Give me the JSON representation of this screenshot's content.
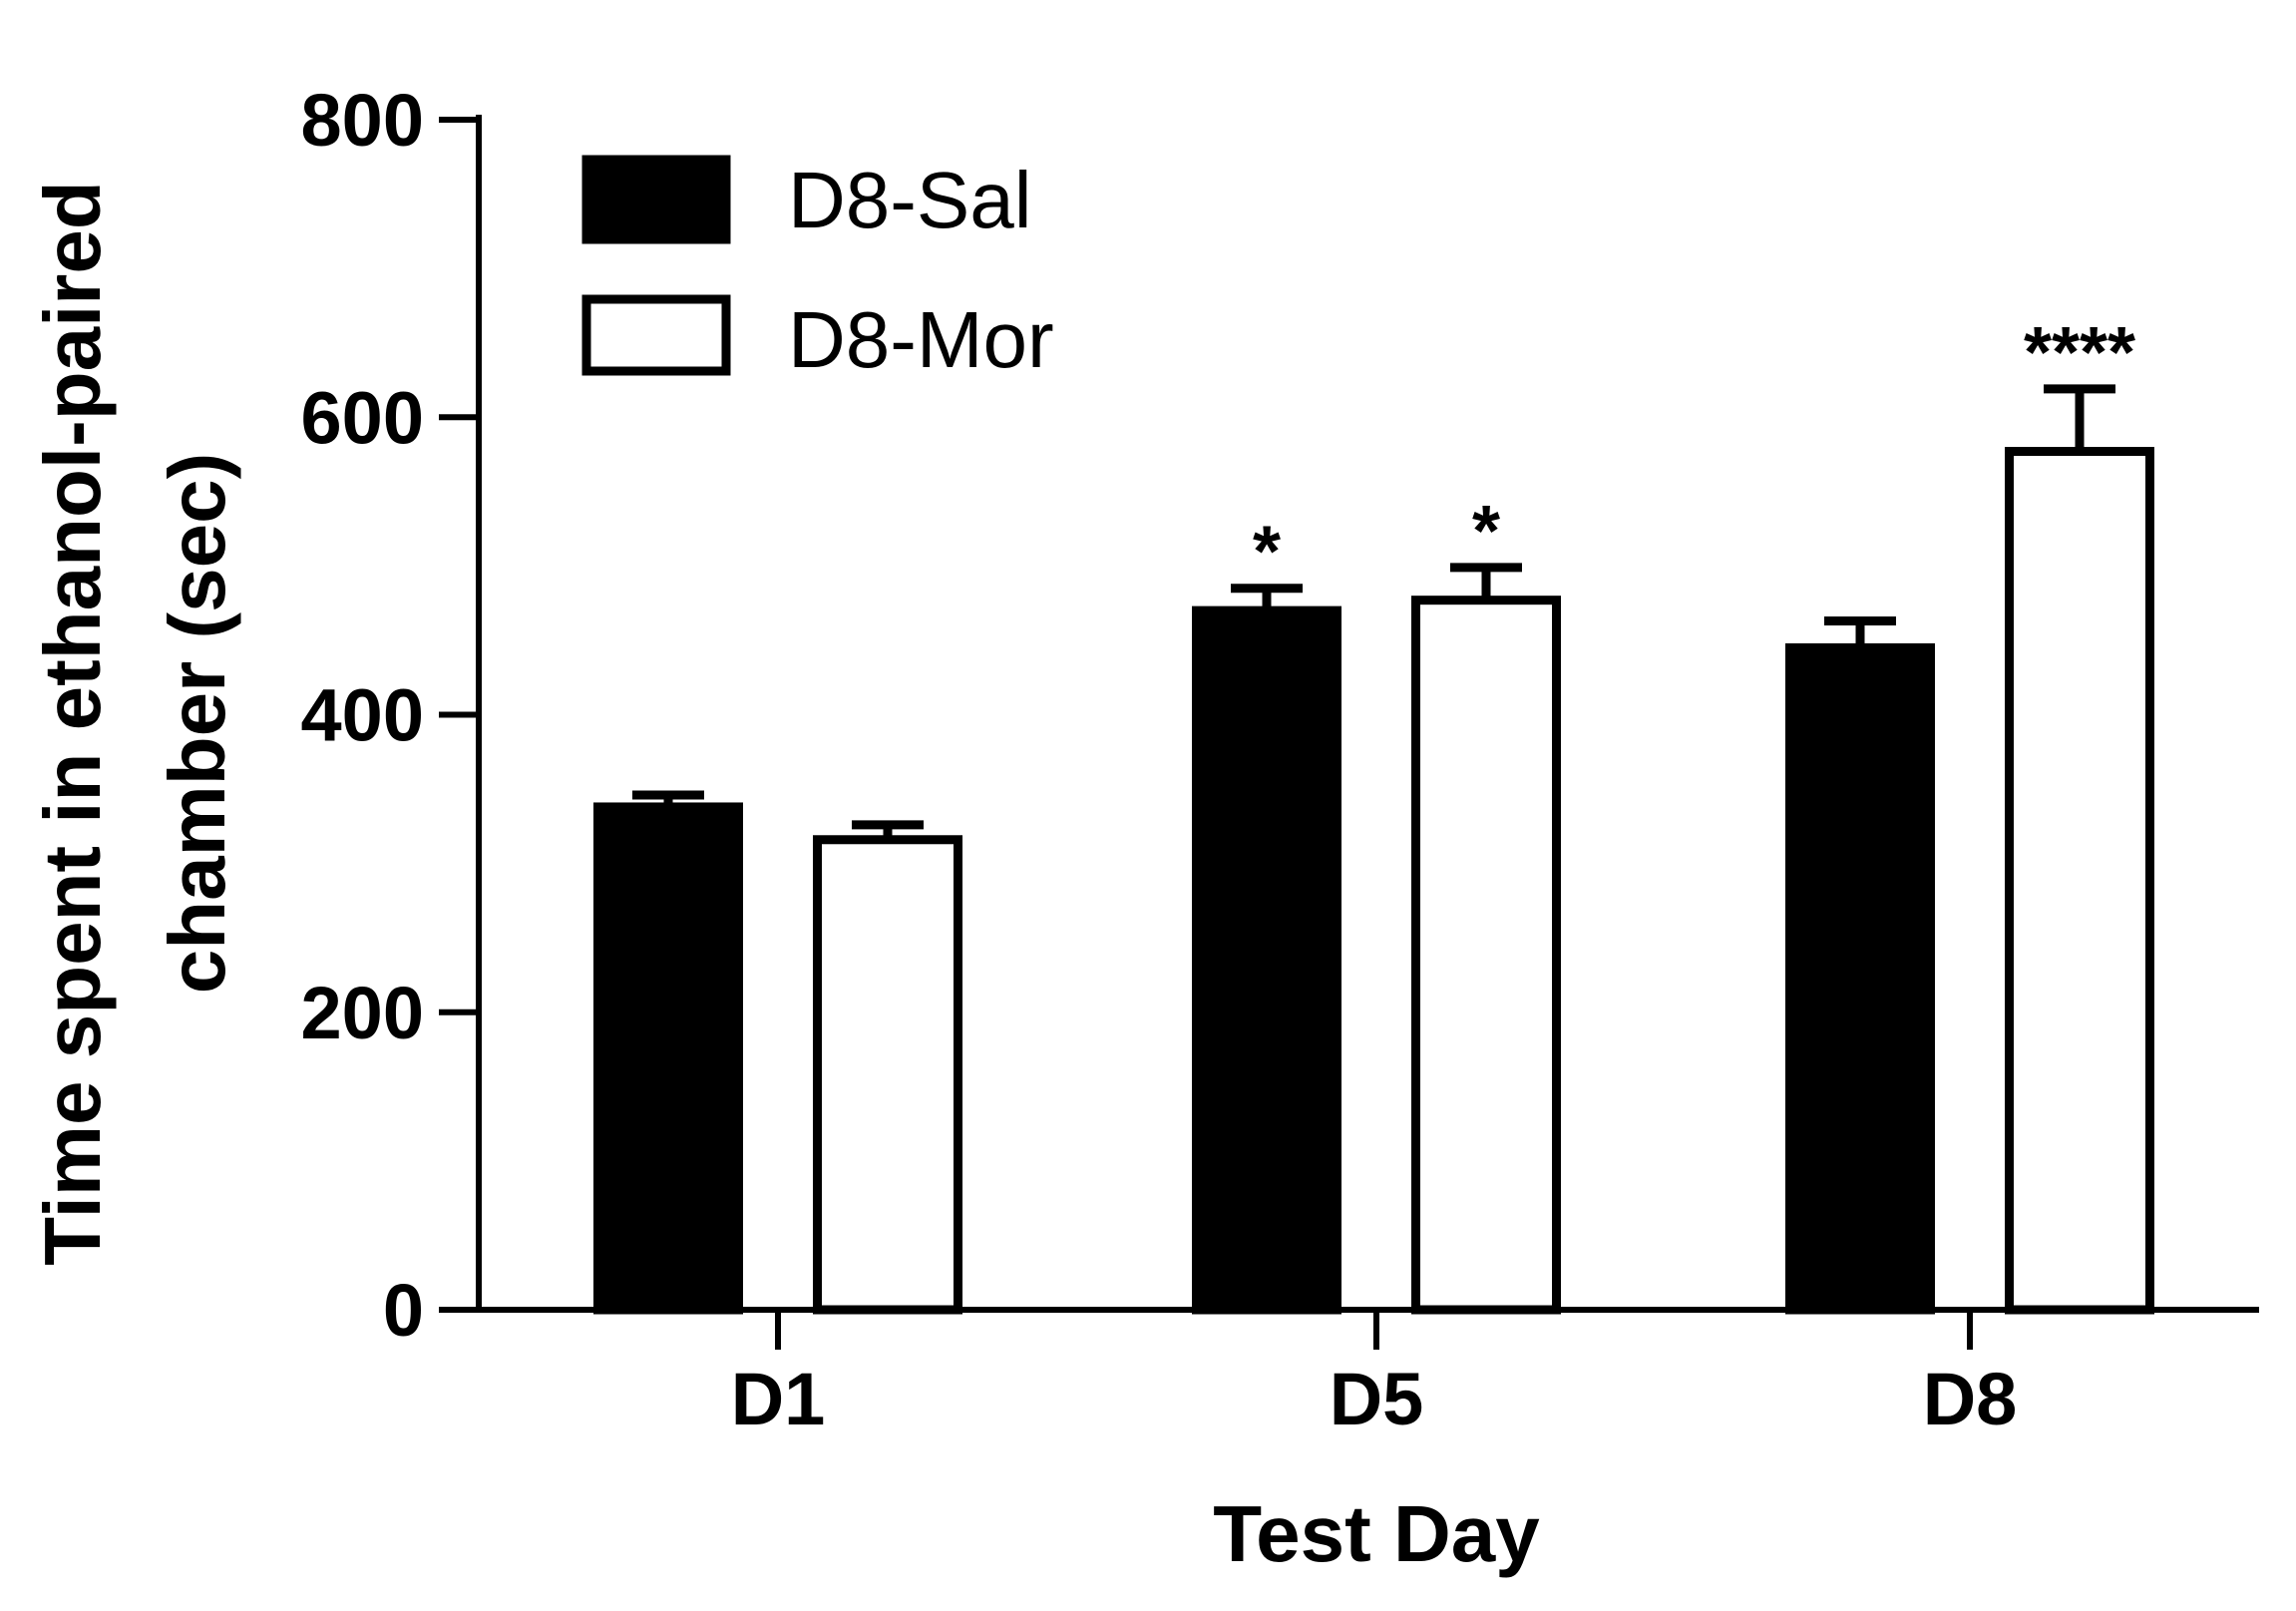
{
  "chart_data": {
    "type": "bar",
    "categories": [
      "D1",
      "D5",
      "D8"
    ],
    "series": [
      {
        "name": "D8-Sal",
        "color": "#000000",
        "fill": "solid",
        "values": [
          338,
          470,
          445
        ],
        "errors": [
          8,
          15,
          18
        ]
      },
      {
        "name": "D8-Mor",
        "color": "#ffffff",
        "fill": "open",
        "values": [
          316,
          477,
          577
        ],
        "errors": [
          10,
          22,
          42
        ]
      }
    ],
    "annotations": [
      {
        "series": 0,
        "category": 1,
        "text": "*"
      },
      {
        "series": 1,
        "category": 1,
        "text": "*"
      },
      {
        "series": 1,
        "category": 2,
        "text": "****"
      }
    ],
    "xlabel": "Test Day",
    "ylabel_lines": [
      "Time spent in ethanol-paired",
      "chamber (sec)"
    ],
    "ylim": [
      0,
      800
    ],
    "yticks": [
      0,
      200,
      400,
      600,
      800
    ],
    "grid": false,
    "legend": "top-left"
  }
}
